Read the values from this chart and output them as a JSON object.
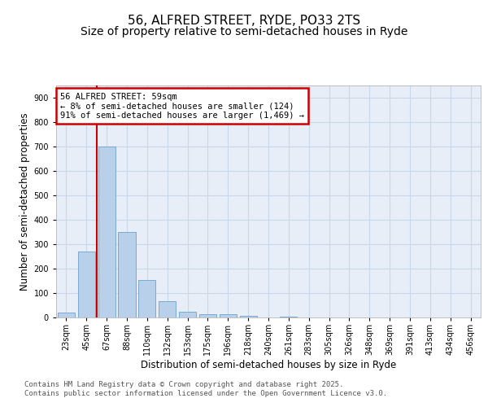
{
  "title_line1": "56, ALFRED STREET, RYDE, PO33 2TS",
  "title_line2": "Size of property relative to semi-detached houses in Ryde",
  "xlabel": "Distribution of semi-detached houses by size in Ryde",
  "ylabel": "Number of semi-detached properties",
  "bar_values": [
    20,
    270,
    700,
    350,
    155,
    68,
    23,
    13,
    15,
    8,
    0,
    5,
    0,
    0,
    0,
    0,
    0,
    0,
    0,
    0,
    0
  ],
  "bin_labels": [
    "23sqm",
    "45sqm",
    "67sqm",
    "88sqm",
    "110sqm",
    "132sqm",
    "153sqm",
    "175sqm",
    "196sqm",
    "218sqm",
    "240sqm",
    "261sqm",
    "283sqm",
    "305sqm",
    "326sqm",
    "348sqm",
    "369sqm",
    "391sqm",
    "413sqm",
    "434sqm",
    "456sqm"
  ],
  "bar_color": "#b8d0ea",
  "bar_edge_color": "#6ca0cc",
  "grid_color": "#c8d8ec",
  "background_color": "#e8eef8",
  "vline_color": "#cc0000",
  "vline_position": 1.5,
  "annotation_text": "56 ALFRED STREET: 59sqm\n← 8% of semi-detached houses are smaller (124)\n91% of semi-detached houses are larger (1,469) →",
  "annotation_box_color": "#cc0000",
  "ylim": [
    0,
    950
  ],
  "yticks": [
    0,
    100,
    200,
    300,
    400,
    500,
    600,
    700,
    800,
    900
  ],
  "footer_text": "Contains HM Land Registry data © Crown copyright and database right 2025.\nContains public sector information licensed under the Open Government Licence v3.0.",
  "title_fontsize": 11,
  "subtitle_fontsize": 10,
  "axis_label_fontsize": 8.5,
  "tick_fontsize": 7,
  "annotation_fontsize": 7.5,
  "footer_fontsize": 6.5
}
